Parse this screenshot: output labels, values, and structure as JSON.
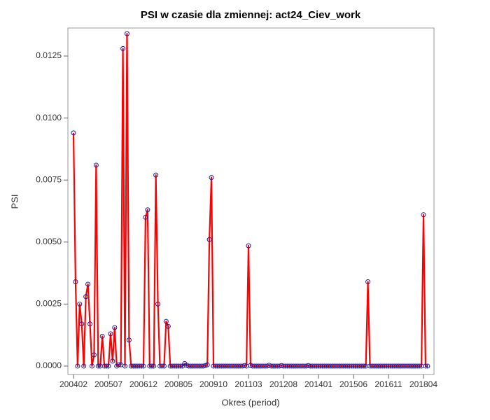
{
  "chart_data": {
    "type": "line",
    "title": "PSI w czasie dla zmiennej: act24_Ciev_work",
    "x_label": "Okres (period)",
    "y_label": "PSI",
    "categories": [
      "200402",
      null,
      null,
      null,
      null,
      null,
      null,
      null,
      null,
      null,
      null,
      null,
      null,
      null,
      null,
      null,
      null,
      "200507",
      null,
      null,
      null,
      null,
      null,
      null,
      null,
      null,
      null,
      null,
      null,
      null,
      null,
      null,
      null,
      null,
      "200612",
      null,
      null,
      null,
      null,
      null,
      null,
      null,
      null,
      null,
      null,
      null,
      null,
      null,
      null,
      null,
      null,
      "200805",
      null,
      null,
      null,
      null,
      null,
      null,
      null,
      null,
      null,
      null,
      null,
      null,
      null,
      null,
      null,
      null,
      "200910",
      null,
      null,
      null,
      null,
      null,
      null,
      null,
      null,
      null,
      null,
      null,
      null,
      null,
      null,
      null,
      null,
      "201103",
      null,
      null,
      null,
      null,
      null,
      null,
      null,
      null,
      null,
      null,
      null,
      null,
      null,
      null,
      null,
      null,
      "201208",
      null,
      null,
      null,
      null,
      null,
      null,
      null,
      null,
      null,
      null,
      null,
      null,
      null,
      null,
      null,
      null,
      "201401",
      null,
      null,
      null,
      null,
      null,
      null,
      null,
      null,
      null,
      null,
      null,
      null,
      null,
      null,
      null,
      null,
      "201506",
      null,
      null,
      null,
      null,
      null,
      null,
      null,
      null,
      null,
      null,
      null,
      null,
      null,
      null,
      null,
      null,
      "201611",
      null,
      null,
      null,
      null,
      null,
      null,
      null,
      null,
      null,
      null,
      null,
      null,
      null,
      null,
      null,
      null,
      "201804",
      null,
      null
    ],
    "values": [
      0.0094,
      0.0034,
      0,
      0.0025,
      0.0017,
      0,
      0.0028,
      0.0033,
      0.0017,
      0,
      0.00045,
      0.0081,
      0,
      0,
      0.0012,
      0,
      0,
      0,
      0.0013,
      0.0002,
      0.00155,
      0,
      5e-05,
      5e-05,
      0.0128,
      0,
      0.0134,
      0.00105,
      0,
      0,
      0,
      0,
      0,
      0,
      0,
      0.006,
      0.0063,
      0,
      0,
      0,
      0.0077,
      0.0025,
      0,
      0,
      0,
      0.0018,
      0.0016,
      0,
      0,
      0,
      0,
      0,
      0,
      0,
      0.0001,
      3e-05,
      0,
      0,
      0,
      0,
      0,
      0,
      0,
      0,
      2e-05,
      5e-05,
      0.0051,
      0.0076,
      0,
      0,
      0,
      0,
      0,
      0,
      0,
      0,
      0,
      0,
      0,
      0,
      0,
      0,
      0,
      2e-05,
      0,
      0.00485,
      3e-05,
      0,
      0,
      0,
      0,
      0,
      0,
      0,
      0,
      3e-05,
      0,
      0,
      0,
      0,
      0,
      2e-05,
      0,
      0,
      0,
      0,
      0,
      0,
      0,
      0,
      0,
      0,
      0,
      0,
      2e-05,
      0,
      0,
      0,
      0,
      0,
      0,
      0,
      0,
      0,
      0,
      0,
      0,
      0,
      0,
      0,
      0,
      0,
      0,
      0,
      0,
      0,
      0,
      0,
      0,
      0,
      0,
      0,
      0,
      0.0034,
      0,
      0,
      0,
      0,
      0,
      0,
      0,
      0,
      0,
      0,
      0,
      0,
      0,
      0,
      0,
      0,
      0,
      0,
      0,
      0,
      0,
      0,
      0,
      0,
      0,
      0,
      0.0061,
      0,
      0
    ],
    "line_color": "#ff0000",
    "marker_color": "#1a1aa0",
    "ylim": [
      -0.00034,
      0.01363
    ],
    "yticks": [
      {
        "value": 0,
        "label": "0.0000"
      },
      {
        "value": 0.0025,
        "label": "0.0025"
      },
      {
        "value": 0.005,
        "label": "0.0050"
      },
      {
        "value": 0.0075,
        "label": "0.0075"
      },
      {
        "value": 0.01,
        "label": "0.0100"
      },
      {
        "value": 0.0125,
        "label": "0.0125"
      }
    ]
  }
}
